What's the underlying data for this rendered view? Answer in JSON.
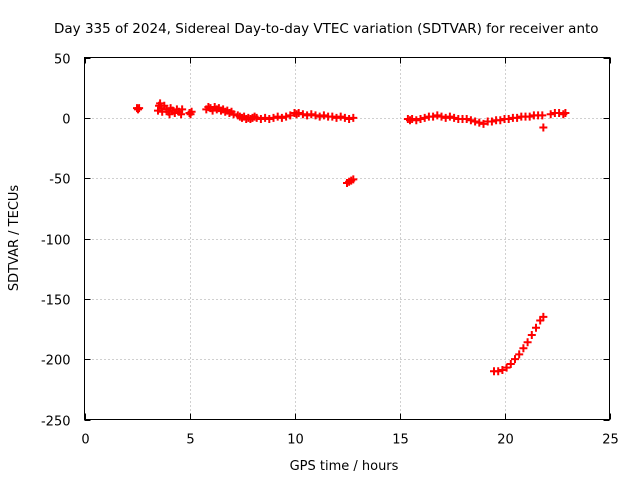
{
  "chart_data": {
    "type": "scatter",
    "title": "Day 335 of 2024, Sidereal Day-to-day VTEC variation (SDTVAR) for receiver anto",
    "xlabel": "GPS time / hours",
    "ylabel": "SDTVAR / TECUs",
    "xlim": [
      0,
      25
    ],
    "ylim": [
      -250,
      50
    ],
    "xticks": [
      0,
      5,
      10,
      15,
      20,
      25
    ],
    "yticks": [
      50,
      0,
      -50,
      -100,
      -150,
      -200,
      -250
    ],
    "grid": true,
    "marker": "+",
    "color": "#ff0000",
    "series": [
      {
        "name": "SDTVAR",
        "points": [
          [
            2.5,
            8
          ],
          [
            2.55,
            7
          ],
          [
            2.6,
            8
          ],
          [
            3.5,
            6
          ],
          [
            3.55,
            10
          ],
          [
            3.6,
            12
          ],
          [
            3.65,
            8
          ],
          [
            3.7,
            5
          ],
          [
            3.8,
            10
          ],
          [
            3.9,
            7
          ],
          [
            4.0,
            5
          ],
          [
            4.05,
            3
          ],
          [
            4.1,
            8
          ],
          [
            4.2,
            6
          ],
          [
            4.3,
            4
          ],
          [
            4.4,
            7
          ],
          [
            4.5,
            5
          ],
          [
            4.6,
            3
          ],
          [
            4.65,
            7
          ],
          [
            5.0,
            4
          ],
          [
            5.05,
            3
          ],
          [
            5.1,
            5
          ],
          [
            5.8,
            7
          ],
          [
            5.9,
            9
          ],
          [
            6.0,
            8
          ],
          [
            6.1,
            6
          ],
          [
            6.2,
            9
          ],
          [
            6.3,
            7
          ],
          [
            6.4,
            8
          ],
          [
            6.5,
            6
          ],
          [
            6.6,
            7
          ],
          [
            6.7,
            5
          ],
          [
            6.8,
            6
          ],
          [
            6.9,
            4
          ],
          [
            7.0,
            5
          ],
          [
            7.1,
            3
          ],
          [
            7.3,
            2
          ],
          [
            7.4,
            1
          ],
          [
            7.5,
            0
          ],
          [
            7.6,
            1
          ],
          [
            7.7,
            -1
          ],
          [
            7.8,
            0
          ],
          [
            7.9,
            -1
          ],
          [
            8.0,
            0
          ],
          [
            8.1,
            1
          ],
          [
            8.2,
            0
          ],
          [
            8.4,
            -1
          ],
          [
            8.6,
            0
          ],
          [
            8.8,
            -1
          ],
          [
            9.0,
            0
          ],
          [
            9.2,
            1
          ],
          [
            9.4,
            0
          ],
          [
            9.6,
            1
          ],
          [
            9.8,
            2
          ],
          [
            10.0,
            4
          ],
          [
            10.1,
            3
          ],
          [
            10.2,
            4
          ],
          [
            10.4,
            3
          ],
          [
            10.6,
            2
          ],
          [
            10.8,
            3
          ],
          [
            11.0,
            2
          ],
          [
            11.2,
            1
          ],
          [
            11.4,
            2
          ],
          [
            11.6,
            1
          ],
          [
            11.8,
            1
          ],
          [
            12.0,
            0
          ],
          [
            12.2,
            1
          ],
          [
            12.4,
            0
          ],
          [
            12.6,
            -1
          ],
          [
            12.8,
            0
          ],
          [
            12.5,
            -54
          ],
          [
            12.6,
            -53
          ],
          [
            12.7,
            -52
          ],
          [
            12.8,
            -51
          ],
          [
            15.4,
            -1
          ],
          [
            15.5,
            -2
          ],
          [
            15.6,
            -1
          ],
          [
            15.8,
            -2
          ],
          [
            16.0,
            -1
          ],
          [
            16.2,
            0
          ],
          [
            16.4,
            1
          ],
          [
            16.6,
            1
          ],
          [
            16.8,
            2
          ],
          [
            17.0,
            1
          ],
          [
            17.2,
            0
          ],
          [
            17.4,
            1
          ],
          [
            17.6,
            0
          ],
          [
            17.8,
            -1
          ],
          [
            18.0,
            -1
          ],
          [
            18.2,
            -1
          ],
          [
            18.4,
            -2
          ],
          [
            18.6,
            -3
          ],
          [
            18.8,
            -4
          ],
          [
            19.0,
            -5
          ],
          [
            19.2,
            -3
          ],
          [
            19.4,
            -3
          ],
          [
            19.6,
            -2
          ],
          [
            19.8,
            -2
          ],
          [
            20.0,
            -1
          ],
          [
            20.2,
            -1
          ],
          [
            20.4,
            0
          ],
          [
            20.6,
            0
          ],
          [
            20.8,
            1
          ],
          [
            21.0,
            1
          ],
          [
            21.2,
            1
          ],
          [
            21.4,
            2
          ],
          [
            21.6,
            2
          ],
          [
            21.8,
            2
          ],
          [
            21.85,
            -8
          ],
          [
            22.2,
            3
          ],
          [
            22.4,
            4
          ],
          [
            22.6,
            4
          ],
          [
            22.8,
            3
          ],
          [
            22.9,
            4
          ],
          [
            19.5,
            -210
          ],
          [
            19.7,
            -210
          ],
          [
            19.9,
            -209
          ],
          [
            20.1,
            -207
          ],
          [
            20.3,
            -204
          ],
          [
            20.5,
            -200
          ],
          [
            20.7,
            -196
          ],
          [
            20.9,
            -191
          ],
          [
            21.1,
            -186
          ],
          [
            21.3,
            -180
          ],
          [
            21.5,
            -174
          ],
          [
            21.7,
            -168
          ],
          [
            21.85,
            -165
          ]
        ]
      }
    ]
  }
}
